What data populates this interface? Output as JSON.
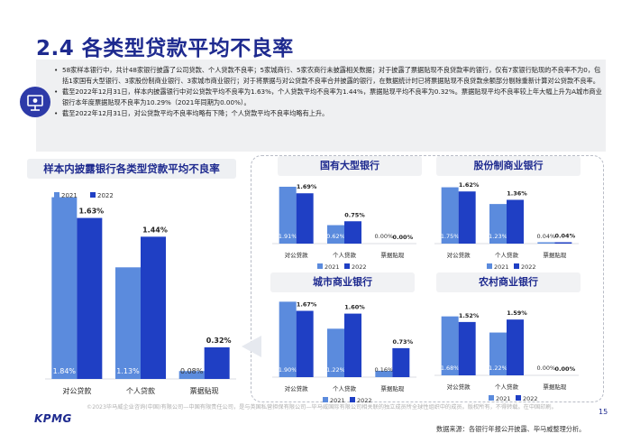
{
  "page": {
    "title": "2.4 各类型贷款平均不良率",
    "page_number": "15",
    "kpmg_logo": "KPMG",
    "footer_note": "©2023毕马威企业咨询(中国)有限公司—中国有限责任公司，是与英国私营担保有限公司—毕马威国际有限公司相关联的独立成员所全球性组织中的成员。版权所有，不得转载。在中国印刷。",
    "source": "数据来源：各银行年报公开披露、毕马威整理分析。",
    "summary_icon": "presentation-icon",
    "colors": {
      "y2021": "#5b8bdd",
      "y2022": "#1f3fc4",
      "title": "#1e2a8f"
    }
  },
  "summary": [
    "58家样本银行中，共计48家银行披露了公司贷款、个人贷款不良率；5家城商行、5家农商行未披露相关数据；对于披露了票据贴现不良贷款率的银行，仅有7家银行贴现的不良率不为0，包括1家国有大型银行、3家股份制商业银行、3家城市商业银行；对于将票据与对公贷款不良率合并披露的银行，在数据统计时已将票据贴现不良贷款余额部分剔除重新计算对公贷款不良率。",
    "截至2022年12月31日，样本内披露银行中对公贷款平均不良率为1.63%，个人贷款平均不良率为1.44%，票据贴现平均不良率为0.32%。票据贴现平均不良率较上年大幅上升为A城市商业银行本年度票据贴现不良率为10.29%（2021年同期为0.00%）。",
    "截至2022年12月31日，对公贷款平均不良率均略有下降；个人贷款平均不良率均略有上升。"
  ],
  "chart_data": [
    {
      "type": "bar",
      "title": "样本内披露银行各类型贷款平均不良率",
      "categories": [
        "对公贷款",
        "个人贷款",
        "票据贴现"
      ],
      "series": [
        {
          "name": "2021",
          "values": [
            1.84,
            1.13,
            0.08
          ],
          "labels": [
            "1.84%",
            "1.13%",
            "0.08%"
          ]
        },
        {
          "name": "2022",
          "values": [
            1.63,
            1.44,
            0.32
          ],
          "labels": [
            "1.63%",
            "1.44%",
            "0.32%"
          ]
        }
      ],
      "ylim": [
        0,
        1.9
      ],
      "legend": "top-left"
    },
    {
      "type": "bar",
      "title": "国有大型银行",
      "categories": [
        "对公贷款",
        "个人贷款",
        "票据贴现"
      ],
      "series": [
        {
          "name": "2021",
          "values": [
            1.91,
            0.62,
            0.0
          ],
          "labels": [
            "1.91%",
            "0.62%",
            "0.00%"
          ]
        },
        {
          "name": "2022",
          "values": [
            1.69,
            0.75,
            0.0
          ],
          "labels": [
            "1.69%",
            "0.75%",
            "0.00%"
          ]
        }
      ],
      "ylim": [
        0,
        2.0
      ],
      "legend": "bottom"
    },
    {
      "type": "bar",
      "title": "股份制商业银行",
      "categories": [
        "对公贷款",
        "个人贷款",
        "票据贴现"
      ],
      "series": [
        {
          "name": "2021",
          "values": [
            1.75,
            1.23,
            0.04
          ],
          "labels": [
            "1.75%",
            "1.23%",
            "0.04%"
          ]
        },
        {
          "name": "2022",
          "values": [
            1.62,
            1.36,
            0.04
          ],
          "labels": [
            "1.62%",
            "1.36%",
            "0.04%"
          ]
        }
      ],
      "ylim": [
        0,
        1.85
      ],
      "legend": "bottom"
    },
    {
      "type": "bar",
      "title": "城市商业银行",
      "categories": [
        "对公贷款",
        "个人贷款",
        "票据贴现"
      ],
      "series": [
        {
          "name": "2021",
          "values": [
            1.9,
            1.22,
            0.16
          ],
          "labels": [
            "1.90%",
            "1.22%",
            "0.16%"
          ]
        },
        {
          "name": "2022",
          "values": [
            1.67,
            1.6,
            0.73
          ],
          "labels": [
            "1.67%",
            "1.60%",
            "0.73%"
          ]
        }
      ],
      "ylim": [
        0,
        2.0
      ],
      "legend": "bottom"
    },
    {
      "type": "bar",
      "title": "农村商业银行",
      "categories": [
        "对公贷款",
        "个人贷款",
        "票据贴现"
      ],
      "series": [
        {
          "name": "2021",
          "values": [
            1.68,
            1.22,
            0.0
          ],
          "labels": [
            "1.68%",
            "1.22%",
            "0.00%"
          ]
        },
        {
          "name": "2022",
          "values": [
            1.52,
            1.59,
            0.0
          ],
          "labels": [
            "1.52%",
            "1.59%",
            "0.00%"
          ]
        }
      ],
      "ylim": [
        0,
        1.8
      ],
      "legend": "bottom"
    }
  ]
}
